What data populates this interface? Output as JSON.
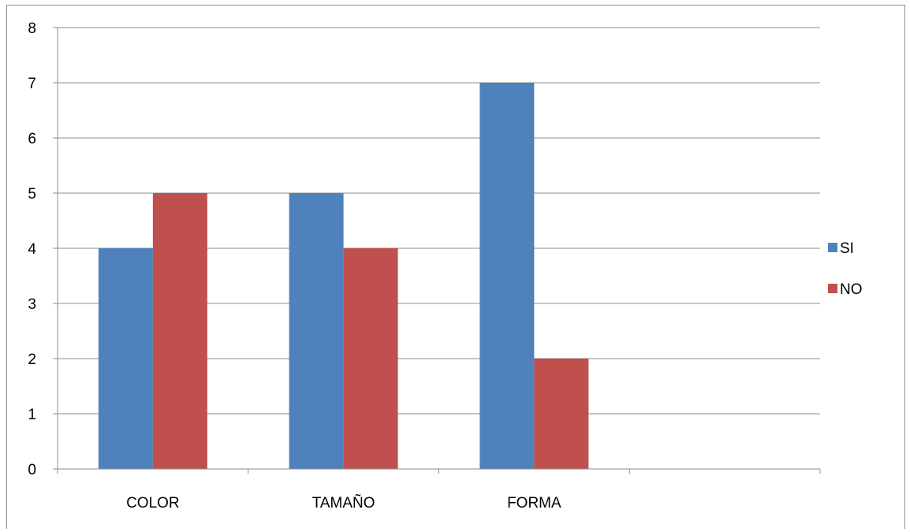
{
  "chart_data": {
    "type": "bar",
    "title": "",
    "xlabel": "",
    "ylabel": "",
    "categories": [
      "COLOR",
      "TAMAÑO",
      "FORMA",
      ""
    ],
    "series": [
      {
        "name": "SI",
        "values": [
          4,
          5,
          7,
          null
        ],
        "color": "#4f81bd"
      },
      {
        "name": "NO",
        "values": [
          5,
          4,
          2,
          null
        ],
        "color": "#c0504d"
      }
    ],
    "ylim": [
      0,
      8
    ],
    "yticks": [
      "0",
      "1",
      "2",
      "3",
      "4",
      "5",
      "6",
      "7",
      "8"
    ],
    "grid": true,
    "legend_position": "right"
  }
}
